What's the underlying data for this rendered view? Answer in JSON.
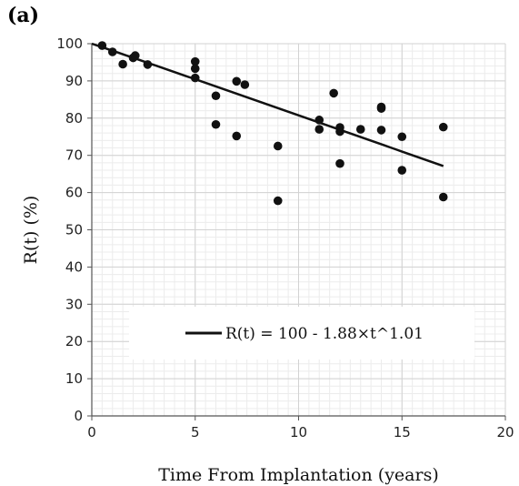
{
  "panel_label": "(a)",
  "chart_data": {
    "type": "scatter",
    "xlabel": "Time From Implantation (years)",
    "ylabel": "R(t)  (%)",
    "xlim": [
      0,
      20
    ],
    "ylim": [
      0,
      100
    ],
    "xticks": [
      0,
      5,
      10,
      15,
      20
    ],
    "yticks": [
      0,
      10,
      20,
      30,
      40,
      50,
      60,
      70,
      80,
      90,
      100
    ],
    "x_minor_step": 0.5,
    "y_minor_step": 2,
    "grid": true,
    "legend_position": "lower-center",
    "marker_color": "#111111",
    "points": [
      {
        "x": 0.5,
        "y": 99.5
      },
      {
        "x": 1.0,
        "y": 97.8
      },
      {
        "x": 1.5,
        "y": 94.5
      },
      {
        "x": 2.0,
        "y": 96.2
      },
      {
        "x": 2.1,
        "y": 96.8
      },
      {
        "x": 2.7,
        "y": 94.4
      },
      {
        "x": 5.0,
        "y": 95.2
      },
      {
        "x": 5.0,
        "y": 93.3
      },
      {
        "x": 5.0,
        "y": 90.8
      },
      {
        "x": 6.0,
        "y": 86.0
      },
      {
        "x": 6.0,
        "y": 78.3
      },
      {
        "x": 7.0,
        "y": 89.9
      },
      {
        "x": 7.0,
        "y": 75.2
      },
      {
        "x": 7.4,
        "y": 89.0
      },
      {
        "x": 9.0,
        "y": 72.5
      },
      {
        "x": 9.0,
        "y": 57.8
      },
      {
        "x": 11.0,
        "y": 79.5
      },
      {
        "x": 11.0,
        "y": 77.0
      },
      {
        "x": 11.7,
        "y": 86.7
      },
      {
        "x": 12.0,
        "y": 77.5
      },
      {
        "x": 12.0,
        "y": 76.4
      },
      {
        "x": 12.0,
        "y": 67.8
      },
      {
        "x": 13.0,
        "y": 77.0
      },
      {
        "x": 14.0,
        "y": 83.0
      },
      {
        "x": 14.0,
        "y": 82.6
      },
      {
        "x": 14.0,
        "y": 76.8
      },
      {
        "x": 15.0,
        "y": 75.0
      },
      {
        "x": 15.0,
        "y": 66.0
      },
      {
        "x": 17.0,
        "y": 77.6
      },
      {
        "x": 17.0,
        "y": 58.8
      }
    ],
    "fit": {
      "name": "R(t)   =  100  -  1.88×t^1.01",
      "a": 100,
      "b": 1.88,
      "c": 1.01,
      "x_start": 0,
      "x_end": 17,
      "color": "#111111"
    }
  }
}
